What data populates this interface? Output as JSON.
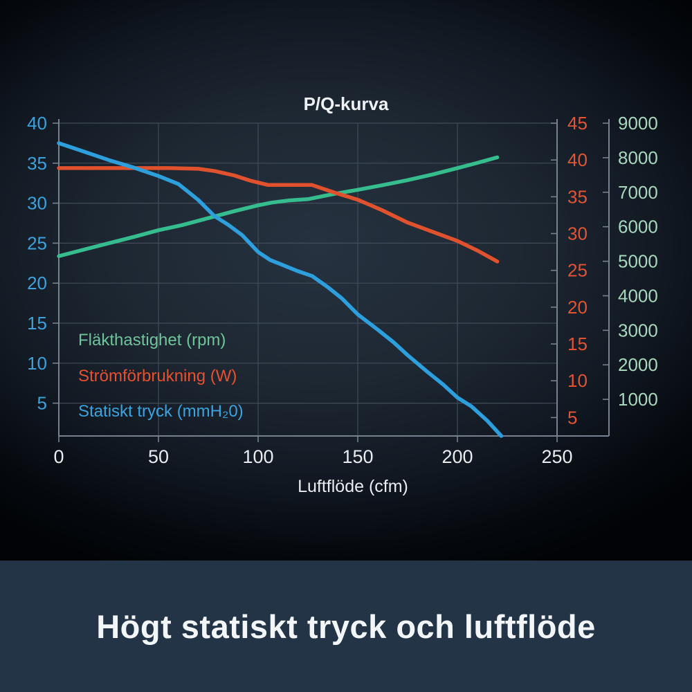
{
  "banner": {
    "text": "Högt statiskt tryck och luftflöde",
    "background_color": "#243447"
  },
  "chart_data": {
    "type": "line",
    "title": "P/Q-kurva",
    "xlabel": "Luftflöde (cfm)",
    "xlim": [
      0,
      250
    ],
    "x_ticks": [
      0,
      50,
      100,
      150,
      200,
      250
    ],
    "grid": true,
    "legend_position": "lower-left",
    "colors": {
      "grid": "#414c58",
      "spine": "#77828e",
      "title_text": "#eef2f5",
      "xaxis_text": "#e9edf0"
    },
    "axes": [
      {
        "id": "rpm",
        "side": "right-outer",
        "label_color": "#a7d8bd",
        "ticks": [
          9000,
          8000,
          7000,
          6000,
          5000,
          4000,
          3000,
          2000,
          1000
        ],
        "range_top": 9000,
        "range_bottom": -60
      },
      {
        "id": "watt",
        "side": "right-inner",
        "label_color": "#e25434",
        "ticks": [
          45,
          40,
          35,
          30,
          25,
          20,
          15,
          10,
          5
        ],
        "range_top": 45,
        "range_bottom": 2.5
      },
      {
        "id": "pressure",
        "side": "left",
        "label_color": "#3da1dc",
        "ticks": [
          40,
          35,
          30,
          25,
          20,
          15,
          10,
          5
        ],
        "range_top": 40,
        "range_bottom": 0.9
      }
    ],
    "series": [
      {
        "name": "Fläkthastighet (rpm)",
        "axis": "rpm",
        "color": "#36bd8e",
        "legend_color": "#6fc49b",
        "points": [
          [
            0,
            5150
          ],
          [
            12,
            5330
          ],
          [
            25,
            5520
          ],
          [
            38,
            5710
          ],
          [
            50,
            5900
          ],
          [
            62,
            6050
          ],
          [
            75,
            6250
          ],
          [
            88,
            6450
          ],
          [
            100,
            6620
          ],
          [
            107,
            6700
          ],
          [
            115,
            6760
          ],
          [
            125,
            6800
          ],
          [
            138,
            6950
          ],
          [
            150,
            7070
          ],
          [
            162,
            7200
          ],
          [
            175,
            7350
          ],
          [
            188,
            7520
          ],
          [
            200,
            7700
          ],
          [
            210,
            7850
          ],
          [
            220,
            8010
          ]
        ]
      },
      {
        "name": "Strömförbrukning (W)",
        "axis": "watt",
        "color": "#e0512e",
        "legend_color": "#e8502e",
        "points": [
          [
            0,
            38.9
          ],
          [
            20,
            38.9
          ],
          [
            40,
            38.9
          ],
          [
            55,
            38.9
          ],
          [
            70,
            38.8
          ],
          [
            78,
            38.5
          ],
          [
            88,
            37.9
          ],
          [
            96,
            37.2
          ],
          [
            105,
            36.6
          ],
          [
            115,
            36.6
          ],
          [
            127,
            36.6
          ],
          [
            138,
            35.6
          ],
          [
            150,
            34.6
          ],
          [
            162,
            33.2
          ],
          [
            175,
            31.5
          ],
          [
            188,
            30.2
          ],
          [
            200,
            29.0
          ],
          [
            210,
            27.7
          ],
          [
            220,
            26.2
          ]
        ]
      },
      {
        "name": "Statiskt tryck (mmH₂0)",
        "axis": "pressure",
        "color": "#2d9fdd",
        "legend_color": "#3aa4e0",
        "points": [
          [
            0,
            37.5
          ],
          [
            12,
            36.5
          ],
          [
            25,
            35.4
          ],
          [
            37,
            34.5
          ],
          [
            50,
            33.4
          ],
          [
            60,
            32.4
          ],
          [
            70,
            30.4
          ],
          [
            78,
            28.4
          ],
          [
            85,
            27.3
          ],
          [
            92,
            26.0
          ],
          [
            100,
            23.9
          ],
          [
            106,
            22.9
          ],
          [
            112,
            22.3
          ],
          [
            120,
            21.5
          ],
          [
            127,
            20.9
          ],
          [
            135,
            19.5
          ],
          [
            142,
            18.1
          ],
          [
            150,
            16.1
          ],
          [
            160,
            14.2
          ],
          [
            168,
            12.6
          ],
          [
            175,
            11.0
          ],
          [
            185,
            8.9
          ],
          [
            193,
            7.3
          ],
          [
            200,
            5.7
          ],
          [
            207,
            4.6
          ],
          [
            215,
            2.8
          ],
          [
            222,
            0.9
          ]
        ]
      }
    ]
  }
}
